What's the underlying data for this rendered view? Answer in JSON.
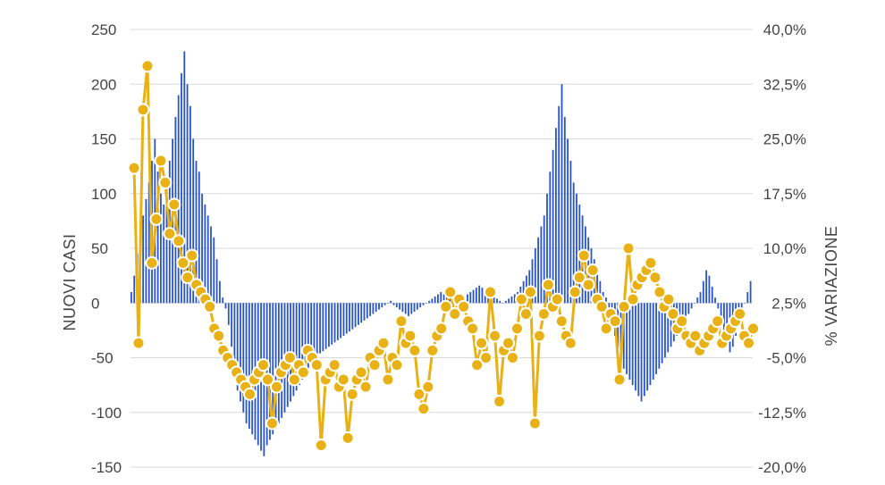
{
  "chart_data": {
    "type": "bar+line",
    "ylabel": "NUOVI CASI",
    "y2label": "% VARIAZIONE",
    "ylim": [
      -150,
      250
    ],
    "y2lim": [
      -20.0,
      40.0
    ],
    "left_ticks": [
      "250",
      "200",
      "150",
      "100",
      "50",
      "0",
      "-50",
      "-100",
      "-150"
    ],
    "left_tick_values": [
      250,
      200,
      150,
      100,
      50,
      0,
      -50,
      -100,
      -150
    ],
    "right_ticks": [
      "40,0%",
      "32,5%",
      "25,0%",
      "17,5%",
      "10,0%",
      "2,5%",
      "-5,0%",
      "-12,5%",
      "-20,0%"
    ],
    "right_tick_values": [
      40.0,
      32.5,
      25.0,
      17.5,
      10.0,
      2.5,
      -5.0,
      -12.5,
      -20.0
    ],
    "grid": true,
    "series": [
      {
        "kind": "bar",
        "color": "#2a55c8",
        "values": [
          10,
          25,
          45,
          60,
          80,
          95,
          110,
          130,
          150,
          120,
          100,
          90,
          110,
          130,
          150,
          170,
          190,
          210,
          230,
          200,
          180,
          150,
          130,
          120,
          100,
          90,
          80,
          70,
          60,
          40,
          20,
          5,
          -5,
          -20,
          -40,
          -60,
          -80,
          -90,
          -100,
          -110,
          -115,
          -120,
          -125,
          -130,
          -135,
          -140,
          -130,
          -125,
          -120,
          -115,
          -110,
          -105,
          -100,
          -95,
          -90,
          -85,
          -80,
          -75,
          -70,
          -65,
          -60,
          -55,
          -50,
          -48,
          -46,
          -44,
          -42,
          -40,
          -38,
          -36,
          -34,
          -32,
          -30,
          -28,
          -26,
          -24,
          -22,
          -20,
          -18,
          -16,
          -14,
          -12,
          -10,
          -8,
          -6,
          -4,
          -2,
          0,
          2,
          -2,
          -4,
          -6,
          -8,
          -10,
          -12,
          -10,
          -8,
          -6,
          -4,
          -2,
          0,
          2,
          4,
          6,
          8,
          10,
          8,
          6,
          4,
          2,
          0,
          2,
          4,
          6,
          8,
          10,
          12,
          14,
          16,
          14,
          12,
          10,
          8,
          6,
          4,
          2,
          0,
          2,
          4,
          6,
          8,
          10,
          15,
          20,
          25,
          30,
          40,
          50,
          60,
          70,
          80,
          100,
          120,
          140,
          160,
          180,
          200,
          170,
          150,
          130,
          110,
          100,
          90,
          80,
          70,
          60,
          50,
          40,
          30,
          20,
          10,
          5,
          -10,
          -20,
          -30,
          -40,
          -50,
          -60,
          -65,
          -70,
          -75,
          -80,
          -85,
          -90,
          -85,
          -80,
          -75,
          -70,
          -65,
          -60,
          -55,
          -50,
          -45,
          -40,
          -35,
          -30,
          -25,
          -20,
          -15,
          -10,
          -5,
          0,
          5,
          10,
          20,
          30,
          25,
          15,
          5,
          -5,
          -15,
          -25,
          -35,
          -45,
          -40,
          -30,
          -20,
          -10,
          0,
          10,
          20
        ]
      },
      {
        "kind": "line-markers",
        "color": "#e8b115",
        "values": [
          21.0,
          -3.0,
          29.0,
          35.0,
          8.0,
          14.0,
          22.0,
          19.0,
          12.0,
          16.0,
          11.0,
          8.0,
          6.0,
          9.0,
          5.0,
          4.0,
          3.0,
          2.0,
          -1.0,
          -2.0,
          -4.0,
          -5.0,
          -6.0,
          -7.0,
          -8.0,
          -9.0,
          -10.0,
          -8.0,
          -7.0,
          -6.0,
          -8.0,
          -14.0,
          -9.0,
          -7.0,
          -6.0,
          -5.0,
          -8.0,
          -6.0,
          -7.0,
          -4.0,
          -5.0,
          -6.0,
          -17.0,
          -8.0,
          -7.0,
          -6.0,
          -9.0,
          -8.0,
          -16.0,
          -10.0,
          -8.0,
          -7.0,
          -9.0,
          -5.0,
          -6.0,
          -4.0,
          -3.0,
          -8.0,
          -5.0,
          -6.0,
          0.0,
          -3.0,
          -2.0,
          -4.0,
          -10.0,
          -12.0,
          -9.0,
          -4.0,
          -2.0,
          -1.0,
          2.0,
          4.0,
          1.0,
          3.0,
          2.0,
          0.0,
          -1.0,
          -6.0,
          -3.0,
          -5.0,
          4.0,
          -2.0,
          -11.0,
          -4.0,
          -3.0,
          -5.0,
          -1.0,
          3.0,
          1.0,
          4.0,
          -14.0,
          -2.0,
          1.0,
          5.0,
          2.0,
          3.0,
          0.0,
          -2.0,
          -3.0,
          4.0,
          6.0,
          9.0,
          5.0,
          7.0,
          3.0,
          2.0,
          -1.0,
          1.0,
          0.0,
          -8.0,
          2.0,
          10.0,
          3.0,
          5.0,
          6.0,
          7.0,
          8.0,
          6.0,
          4.0,
          2.0,
          3.0,
          1.0,
          -1.0,
          0.0,
          -2.0,
          -3.0,
          -2.0,
          -4.0,
          -3.0,
          -2.0,
          -1.0,
          0.0,
          -3.0,
          -2.0,
          -1.0,
          0.0,
          1.0,
          -2.0,
          -3.0,
          -1.0
        ]
      }
    ]
  }
}
